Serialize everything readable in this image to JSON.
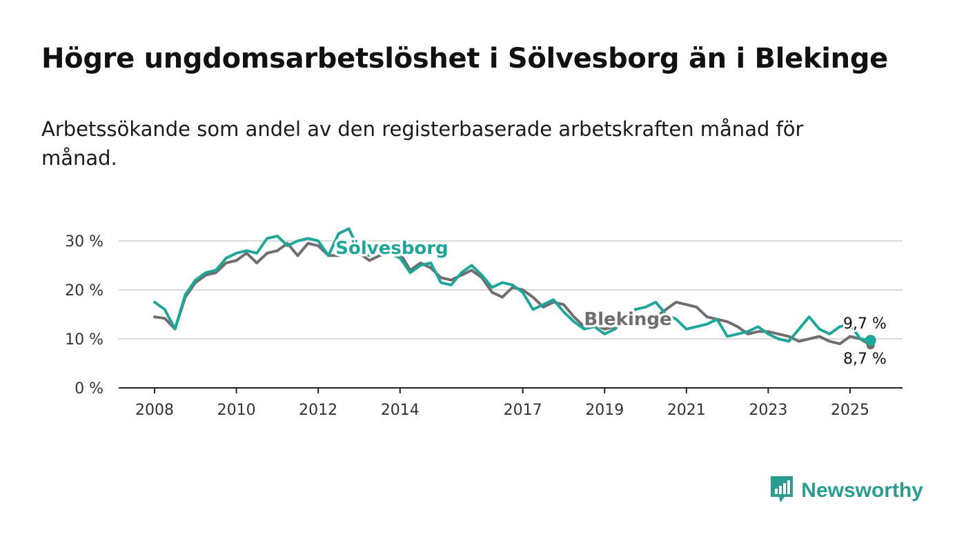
{
  "title": "Högre ungdomsarbetslöshet i Sölvesborg än i Blekinge",
  "subtitle": "Arbetssökande som andel av den registerbaserade arbetskraften månad för månad.",
  "logo": {
    "text": "Newsworthy",
    "icon": "newsworthy-chart-icon",
    "color": "#2a9d92"
  },
  "chart_data": {
    "type": "line",
    "title": "Högre ungdomsarbetslöshet i Sölvesborg än i Blekinge",
    "ylim": [
      0,
      33
    ],
    "y_ticks": [
      0,
      10,
      20,
      30
    ],
    "y_tick_labels": [
      "0 %",
      "10 %",
      "20 %",
      "30 %"
    ],
    "x_ticks": [
      2008,
      2010,
      2012,
      2014,
      2017,
      2019,
      2021,
      2023,
      2025
    ],
    "x_tick_labels": [
      "2008",
      "2010",
      "2012",
      "2014",
      "2017",
      "2019",
      "2021",
      "2023",
      "2025"
    ],
    "grid": true,
    "series": [
      {
        "name": "Blekinge",
        "color": "#706c70",
        "end_label": "8,7 %",
        "x": [
          2008.0,
          2008.25,
          2008.5,
          2008.75,
          2009.0,
          2009.25,
          2009.5,
          2009.75,
          2010.0,
          2010.25,
          2010.5,
          2010.75,
          2011.0,
          2011.25,
          2011.5,
          2011.75,
          2012.0,
          2012.25,
          2012.5,
          2012.75,
          2013.0,
          2013.25,
          2013.5,
          2013.75,
          2014.0,
          2014.25,
          2014.5,
          2014.75,
          2015.0,
          2015.25,
          2015.5,
          2015.75,
          2016.0,
          2016.25,
          2016.5,
          2016.75,
          2017.0,
          2017.25,
          2017.5,
          2017.75,
          2018.0,
          2018.25,
          2018.5,
          2018.75,
          2019.0,
          2019.25,
          2019.5,
          2019.75,
          2020.0,
          2020.25,
          2020.5,
          2020.75,
          2021.0,
          2021.25,
          2021.5,
          2021.75,
          2022.0,
          2022.25,
          2022.5,
          2022.75,
          2023.0,
          2023.25,
          2023.5,
          2023.75,
          2024.0,
          2024.25,
          2024.5,
          2024.75,
          2025.0,
          2025.25,
          2025.5
        ],
        "y": [
          14.5,
          14.2,
          12.0,
          18.5,
          21.5,
          23.0,
          23.5,
          25.5,
          26.0,
          27.5,
          25.5,
          27.5,
          28.0,
          29.5,
          27.0,
          29.5,
          29.0,
          27.0,
          27.0,
          27.5,
          27.5,
          26.0,
          27.0,
          27.5,
          27.5,
          24.0,
          25.5,
          24.5,
          22.5,
          22.0,
          23.0,
          24.0,
          22.5,
          19.5,
          18.5,
          20.5,
          20.0,
          18.5,
          16.5,
          17.5,
          17.0,
          14.5,
          12.5,
          13.0,
          12.0,
          12.5,
          13.0,
          13.5,
          14.0,
          14.5,
          16.0,
          17.5,
          17.0,
          16.5,
          14.5,
          14.0,
          13.5,
          12.5,
          11.0,
          11.5,
          11.5,
          11.0,
          10.5,
          9.5,
          10.0,
          10.5,
          9.5,
          9.0,
          10.5,
          10.0,
          8.7
        ]
      },
      {
        "name": "Sölvesborg",
        "color": "#1fa69a",
        "end_label": "9,7 %",
        "x": [
          2008.0,
          2008.25,
          2008.5,
          2008.75,
          2009.0,
          2009.25,
          2009.5,
          2009.75,
          2010.0,
          2010.25,
          2010.5,
          2010.75,
          2011.0,
          2011.25,
          2011.5,
          2011.75,
          2012.0,
          2012.25,
          2012.5,
          2012.75,
          2013.0,
          2013.25,
          2013.5,
          2013.75,
          2014.0,
          2014.25,
          2014.5,
          2014.75,
          2015.0,
          2015.25,
          2015.5,
          2015.75,
          2016.0,
          2016.25,
          2016.5,
          2016.75,
          2017.0,
          2017.25,
          2017.5,
          2017.75,
          2018.0,
          2018.25,
          2018.5,
          2018.75,
          2019.0,
          2019.25,
          2019.5,
          2019.75,
          2020.0,
          2020.25,
          2020.5,
          2020.75,
          2021.0,
          2021.25,
          2021.5,
          2021.75,
          2022.0,
          2022.25,
          2022.5,
          2022.75,
          2023.0,
          2023.25,
          2023.5,
          2023.75,
          2024.0,
          2024.25,
          2024.5,
          2024.75,
          2025.0,
          2025.25,
          2025.5
        ],
        "y": [
          17.5,
          16.0,
          12.0,
          19.0,
          22.0,
          23.5,
          24.0,
          26.5,
          27.5,
          28.0,
          27.5,
          30.5,
          31.0,
          29.0,
          30.0,
          30.5,
          30.0,
          27.0,
          31.5,
          32.5,
          28.0,
          27.0,
          28.0,
          27.5,
          26.5,
          23.5,
          25.0,
          25.5,
          21.5,
          21.0,
          23.5,
          25.0,
          23.0,
          20.5,
          21.5,
          21.0,
          19.5,
          16.0,
          17.0,
          18.0,
          15.5,
          13.5,
          12.0,
          12.5,
          11.0,
          12.0,
          14.0,
          16.0,
          16.5,
          17.5,
          15.0,
          14.0,
          12.0,
          12.5,
          13.0,
          14.0,
          10.5,
          11.0,
          11.5,
          12.5,
          11.0,
          10.0,
          9.5,
          12.0,
          14.5,
          12.0,
          11.0,
          12.5,
          13.0,
          10.0,
          9.7
        ]
      }
    ]
  }
}
